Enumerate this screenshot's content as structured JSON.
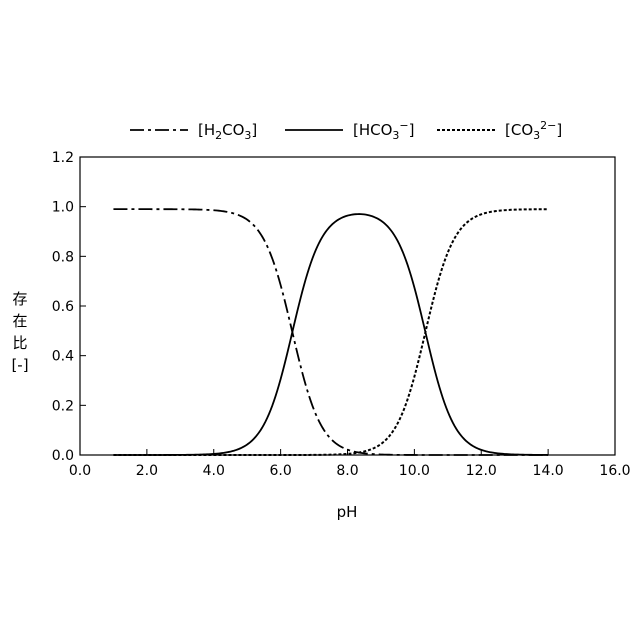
{
  "chart_data": {
    "type": "line",
    "xlabel": "pH",
    "ylabel_chars": [
      "存",
      "在",
      "比",
      "[-]"
    ],
    "xlim": [
      0,
      16
    ],
    "ylim": [
      0,
      1.2
    ],
    "x_ticks": [
      "0.0",
      "2.0",
      "4.0",
      "6.0",
      "8.0",
      "10.0",
      "12.0",
      "14.0",
      "16.0"
    ],
    "y_ticks": [
      "0.0",
      "0.2",
      "0.4",
      "0.6",
      "0.8",
      "1.0",
      "1.2"
    ],
    "grid": false,
    "legend_position": "top",
    "pKa1": 6.35,
    "pKa2": 10.33,
    "x_range": [
      1.0,
      14.0
    ],
    "series": [
      {
        "name": "[H2CO3]",
        "base": "[H",
        "sub": "2",
        "mid": "CO",
        "sub2": "3",
        "sup": "",
        "end": "]",
        "style": "dashdot"
      },
      {
        "name": "[HCO3−]",
        "base": "[HCO",
        "sub": "3",
        "mid": "",
        "sub2": "",
        "sup": "−",
        "end": "]",
        "style": "solid"
      },
      {
        "name": "[CO32−]",
        "base": "[CO",
        "sub": "3",
        "mid": "",
        "sub2": "",
        "sup": "2−",
        "end": "]",
        "style": "dotted"
      }
    ],
    "points": {
      "x": [
        1.0,
        2.0,
        3.0,
        4.0,
        4.5,
        5.0,
        5.5,
        6.0,
        6.35,
        6.5,
        7.0,
        7.5,
        8.0,
        8.34,
        8.5,
        9.0,
        9.5,
        10.0,
        10.33,
        10.5,
        11.0,
        11.5,
        12.0,
        12.5,
        13.0,
        14.0
      ],
      "H2CO3": [
        1.0,
        1.0,
        1.0,
        0.996,
        0.987,
        0.957,
        0.877,
        0.691,
        0.5,
        0.414,
        0.183,
        0.066,
        0.022,
        0.01,
        0.007,
        0.002,
        0.001,
        0.0,
        0.0,
        0.0,
        0.0,
        0.0,
        0.0,
        0.0,
        0.0,
        0.0
      ],
      "HCO3": [
        0.0,
        0.0,
        0.0,
        0.004,
        0.013,
        0.043,
        0.123,
        0.309,
        0.5,
        0.585,
        0.815,
        0.927,
        0.955,
        0.98,
        0.975,
        0.954,
        0.869,
        0.681,
        0.5,
        0.403,
        0.176,
        0.063,
        0.021,
        0.007,
        0.002,
        0.0
      ],
      "CO3": [
        0.0,
        0.0,
        0.0,
        0.0,
        0.0,
        0.0,
        0.0,
        0.0,
        0.0,
        0.001,
        0.002,
        0.007,
        0.023,
        0.01,
        0.018,
        0.044,
        0.13,
        0.319,
        0.5,
        0.597,
        0.824,
        0.937,
        0.979,
        0.993,
        0.998,
        1.0
      ]
    }
  }
}
